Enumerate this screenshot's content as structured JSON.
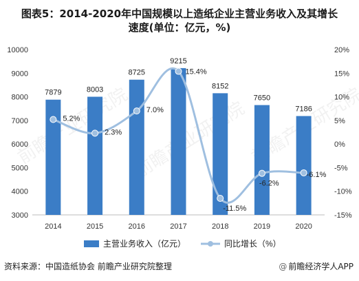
{
  "chart_data": {
    "type": "bar+line",
    "title_line1": "图表5：2014-2020年中国规模以上造纸企业主营业务收入及其增长",
    "title_line2": "速度(单位：亿元，%)",
    "categories": [
      "2014",
      "2015",
      "2016",
      "2017",
      "2018",
      "2019",
      "2020"
    ],
    "series": [
      {
        "name": "主营业务收入（亿元）",
        "type": "bar",
        "axis": "left",
        "values": [
          7879,
          8003,
          8725,
          9215,
          8152,
          7650,
          7186
        ],
        "labels": [
          "7879",
          "8003",
          "8725",
          "9215",
          "8152",
          "7650",
          "7186"
        ]
      },
      {
        "name": "同比增长（%）",
        "type": "line",
        "axis": "right",
        "smooth": true,
        "values": [
          5.2,
          2.3,
          7.0,
          15.4,
          -11.5,
          -6.2,
          -6.1
        ],
        "labels": [
          "5.2%",
          "2.3%",
          "7.0%",
          "15.4%",
          "-11.5%",
          "-6.2%",
          "-6.1%"
        ]
      }
    ],
    "left_axis": {
      "min": 3000,
      "max": 10000,
      "ticks": [
        "3000",
        "4000",
        "5000",
        "6000",
        "7000",
        "8000",
        "9000",
        "10000"
      ]
    },
    "right_axis": {
      "min": -15,
      "max": 20,
      "ticks": [
        "-15%",
        "-10%",
        "-5%",
        "0%",
        "5%",
        "10%",
        "15%",
        "20%"
      ]
    },
    "grid": false,
    "legend": "bottom",
    "colors": {
      "bar": "#3b7dc6",
      "line": "#9fbfe0",
      "marker": "#9fbfe0",
      "axis": "#bbbbbb",
      "text": "#333333"
    }
  },
  "footer": {
    "source": "资料来源：中国造纸协会 前瞻产业研究院整理",
    "brand_at": "@",
    "brand": "前瞻经济学人APP"
  },
  "watermark": "前瞻产业研究院"
}
